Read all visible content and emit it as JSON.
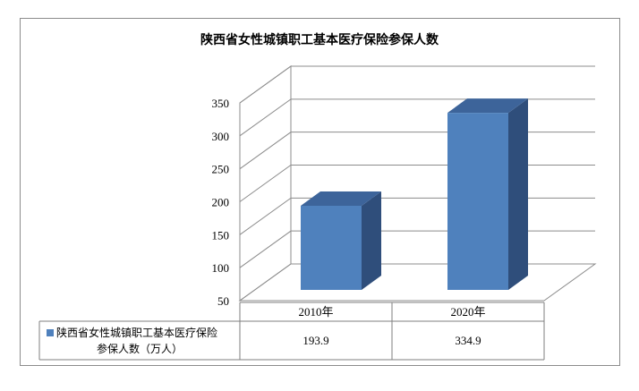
{
  "chart_data": {
    "type": "bar",
    "title": "陕西省女性城镇职工基本医疗保险参保人数",
    "categories": [
      "2010年",
      "2020年"
    ],
    "series": [
      {
        "name": "陕西省女性城镇职工基本医疗保险参保人数（万人）",
        "values": [
          193.9,
          334.9
        ],
        "color": "#4f81bd"
      }
    ],
    "y_ticks": [
      "50",
      "100",
      "150",
      "200",
      "250",
      "300",
      "350"
    ],
    "ylim": [
      50,
      350
    ],
    "grid": true,
    "data_table": {
      "row_label_lines": [
        "陕西省女性城镇职工基本医疗保险",
        "参保人数（万人）"
      ],
      "cells": [
        "193.9",
        "334.9"
      ]
    }
  }
}
